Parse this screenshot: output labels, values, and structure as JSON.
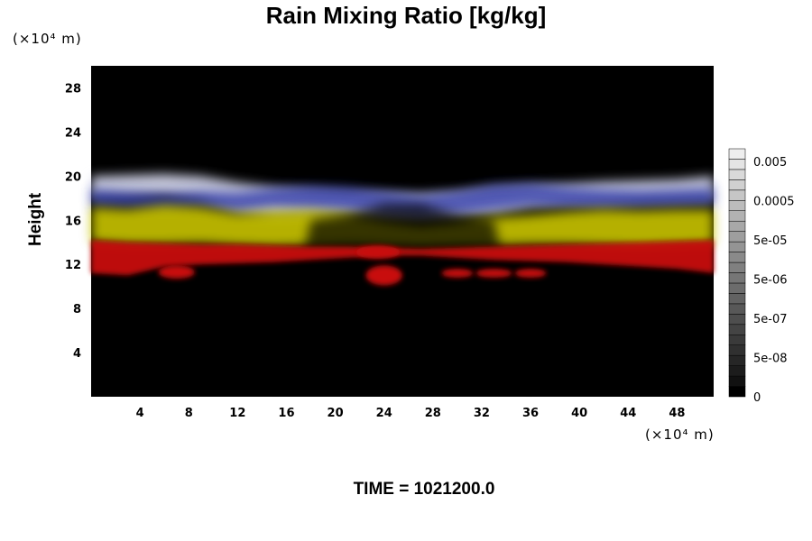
{
  "chart_data": {
    "type": "heatmap",
    "title": "Rain Mixing Ratio [kg/kg]",
    "ylabel": "Height",
    "y_unit": "(×10⁴ m)",
    "x_unit": "(×10⁴ m)",
    "footer": "TIME = 1021200.0",
    "xlim": [
      0,
      51
    ],
    "ylim": [
      0,
      30
    ],
    "x_ticks": [
      4,
      8,
      12,
      16,
      20,
      24,
      28,
      32,
      36,
      40,
      44,
      48
    ],
    "y_ticks": [
      4,
      8,
      12,
      16,
      20,
      24,
      28
    ],
    "colorbar": {
      "labels": [
        "0.005",
        "0.0005",
        "5e-05",
        "5e-06",
        "5e-07",
        "5e-08",
        "0"
      ],
      "level_colors": [
        "#000000",
        "#111111",
        "#1c1c1c",
        "#262626",
        "#303030",
        "#3a3a3a",
        "#444444",
        "#4e4e4e",
        "#585858",
        "#626262",
        "#6c6c6c",
        "#767676",
        "#808080",
        "#8a8a8a",
        "#949494",
        "#9e9e9e",
        "#a8a8a8",
        "#b2b2b2",
        "#bcbcbc",
        "#c6c6c6",
        "#d0d0d0",
        "#dadada",
        "#e4e4e4",
        "#eeeeee"
      ]
    },
    "colors": {
      "background": "#000000",
      "top_layer": "#d8daf0",
      "blue_layer": "#2a35a8",
      "yellow_layer": "#c9c400",
      "red_layer": "#c81010"
    }
  }
}
